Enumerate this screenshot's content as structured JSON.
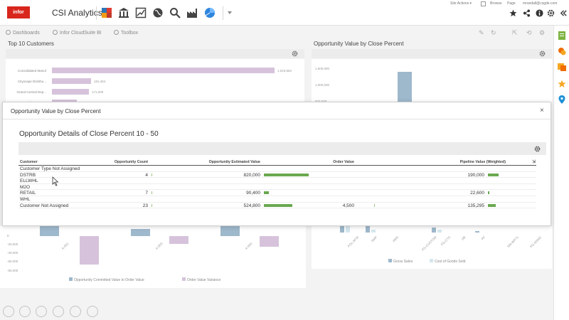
{
  "app": {
    "logo_text": "infor",
    "title": "CSI Analytics",
    "site_actions": "Site Actions ▾",
    "browse": "Browse",
    "page": "Page",
    "user": "mrandall@csgde.com"
  },
  "nav": {
    "items": [
      {
        "label": "Dashboards"
      },
      {
        "label": "Infor CloudSuite BI"
      },
      {
        "label": "Toolbox"
      }
    ]
  },
  "panels": {
    "top_customers": {
      "title": "Top 10 Customers",
      "bars": [
        {
          "label": "Consolidated Manuf",
          "value": 1023862,
          "value_text": "1,023,862"
        },
        {
          "label": "Cityscape Distribu...",
          "value": 181464,
          "value_text": "181,464"
        },
        {
          "label": "Grand Central Dep...",
          "value": 171000,
          "value_text": "171,000"
        },
        {
          "label": "Carolina Frames",
          "value": 115309,
          "value_text": "115,309"
        }
      ]
    },
    "opportunity_value": {
      "title": "Opportunity Value by Close Percent",
      "y_ticks": [
        "1,500,000",
        "1,000,000",
        "500,000"
      ]
    },
    "variance_chart": {
      "y_ticks": [
        "0",
        "-20,000",
        "-40,000",
        "-60,000",
        "-80,000"
      ],
      "categories": [
        "A-001",
        "A-003",
        "A-004"
      ],
      "legend": [
        {
          "label": "Opportunity Committed Value to Order Value",
          "color": "#9eb8cc"
        },
        {
          "label": "Order Value Variance",
          "color": "#d6c3db"
        }
      ]
    },
    "gross_sales_chart": {
      "categories": [
        "FOL-MTR",
        "SMP",
        "AMS",
        "FG-CUSTOM",
        "FG-CTS",
        "SB",
        "PF",
        "SM-WPT1",
        "FG-NSMC"
      ],
      "legend": [
        {
          "label": "Gross Sales",
          "color": "#9eb8cc"
        },
        {
          "label": "Cost of Goods Sold",
          "color": "#d5e6ee"
        }
      ]
    }
  },
  "modal": {
    "title": "Opportunity Value by Close Percent",
    "close": "×",
    "detail_title": "Opportunity Details of Close Percent 10 - 50",
    "columns": [
      "Customer",
      "Opportunity Count",
      "Opportunity Estimated Value",
      "Order Value",
      "Pipeline Value (Weighted)"
    ],
    "rows": [
      {
        "customer": "Customer Type Not Assigned",
        "count": "",
        "est": "",
        "order": "",
        "pipeline": "",
        "count_frac": 0,
        "est_frac": 0,
        "order_frac": 0,
        "pipe_frac": 0
      },
      {
        "customer": "DSTRB",
        "count": "4",
        "est": "820,000",
        "order": "",
        "pipeline": "190,000",
        "count_frac": 0.17,
        "est_frac": 1.0,
        "order_frac": 0,
        "pipe_frac": 1.0
      },
      {
        "customer": "ELLWHL",
        "count": "",
        "est": "",
        "order": "",
        "pipeline": "",
        "count_frac": 0,
        "est_frac": 0,
        "order_frac": 0,
        "pipe_frac": 0
      },
      {
        "customer": "M2O",
        "count": "",
        "est": "",
        "order": "",
        "pipeline": "",
        "count_frac": 0,
        "est_frac": 0,
        "order_frac": 0,
        "pipe_frac": 0
      },
      {
        "customer": "RETAIL",
        "count": "7",
        "est": "90,400",
        "order": "",
        "pipeline": "22,600",
        "count_frac": 0.3,
        "est_frac": 0.11,
        "order_frac": 0,
        "pipe_frac": 0.12
      },
      {
        "customer": "WHL",
        "count": "",
        "est": "",
        "order": "",
        "pipeline": "",
        "count_frac": 0,
        "est_frac": 0,
        "order_frac": 0,
        "pipe_frac": 0
      },
      {
        "customer": "Customer Not Assigned",
        "count": "23",
        "est": "524,800",
        "order": "4,500",
        "pipeline": "135,295",
        "count_frac": 1.0,
        "est_frac": 0.64,
        "order_frac": 1.0,
        "pipe_frac": 0.71
      }
    ],
    "accent_bar_color": "#6aa84f"
  }
}
